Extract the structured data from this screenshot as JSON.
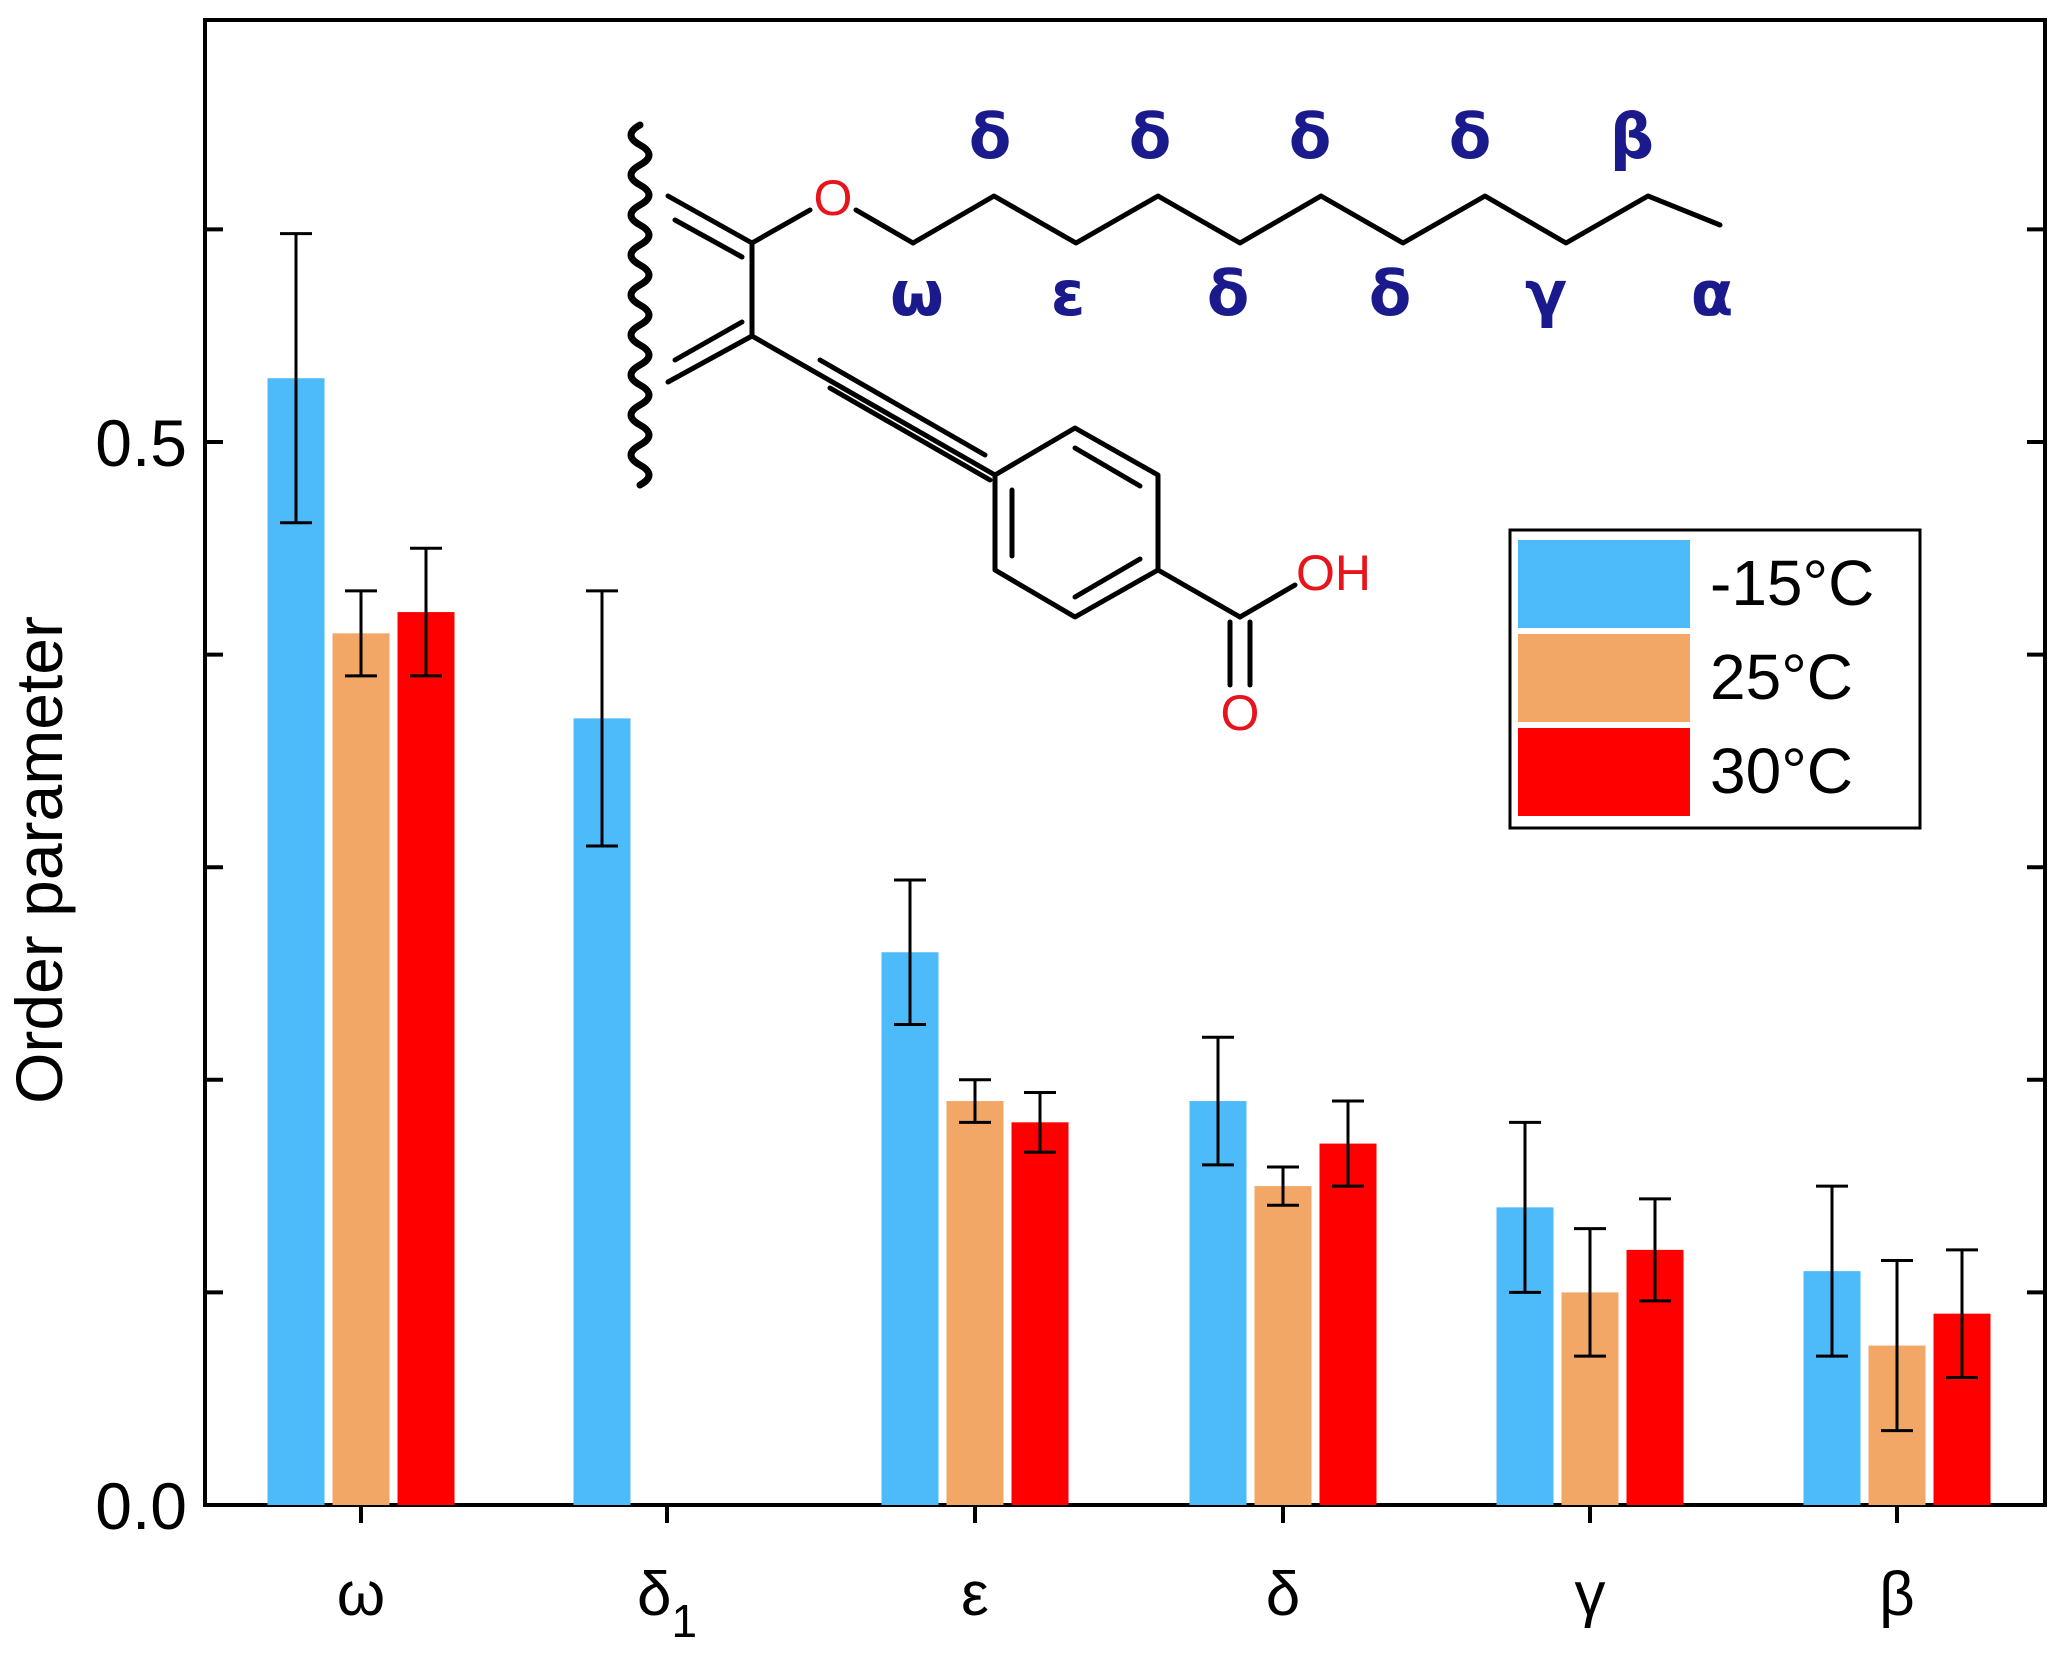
{
  "chart_data": {
    "type": "bar",
    "title": "",
    "xlabel": "",
    "ylabel": "Order parameter",
    "ylim": [
      0.0,
      0.7
    ],
    "y_tick_labels": [
      "0.0",
      "0.5"
    ],
    "y_tick_values": [
      0.0,
      0.5
    ],
    "y_minor_ticks": [
      0.1,
      0.2,
      0.3,
      0.4,
      0.6
    ],
    "categories": [
      "ω",
      "δ1",
      "ε",
      "δ",
      "γ",
      "β"
    ],
    "category_labels": [
      {
        "main": "ω",
        "sub": ""
      },
      {
        "main": "δ",
        "sub": "1"
      },
      {
        "main": "ε",
        "sub": ""
      },
      {
        "main": "δ",
        "sub": ""
      },
      {
        "main": "γ",
        "sub": ""
      },
      {
        "main": "β",
        "sub": ""
      }
    ],
    "series": [
      {
        "name": "-15°C",
        "color": "#4DBBFA",
        "values": [
          0.53,
          0.37,
          0.26,
          0.19,
          0.14,
          0.11
        ],
        "errors": [
          0.068,
          0.06,
          0.034,
          0.03,
          0.04,
          0.04
        ]
      },
      {
        "name": "25°C",
        "color": "#F2A766",
        "values": [
          0.41,
          null,
          0.19,
          0.15,
          0.1,
          0.075
        ],
        "errors": [
          0.02,
          null,
          0.01,
          0.009,
          0.03,
          0.04
        ]
      },
      {
        "name": "30°C",
        "color": "#FF0000",
        "values": [
          0.42,
          null,
          0.18,
          0.17,
          0.12,
          0.09
        ],
        "errors": [
          0.03,
          null,
          0.014,
          0.02,
          0.024,
          0.03
        ]
      }
    ],
    "legend_position": "top-right",
    "grid": false
  },
  "molecule": {
    "chain_labels_top": [
      "δ",
      "δ",
      "δ",
      "δ",
      "β"
    ],
    "chain_labels_bottom": [
      "ω",
      "ε",
      "δ",
      "δ",
      "γ",
      "α"
    ],
    "atom_O_ether": "O",
    "atom_OH": "OH",
    "atom_O_carbonyl": "O",
    "label_color": "#1A1A8C",
    "hetero_color": "#E8141C"
  }
}
